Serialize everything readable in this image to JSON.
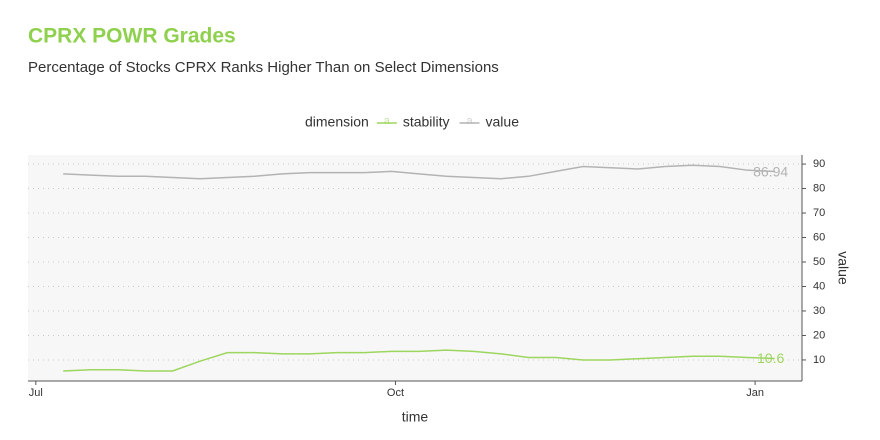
{
  "chart_data": {
    "type": "line",
    "title": "CPRX POWR Grades",
    "subtitle": "Percentage of Stocks CPRX Ranks Higher Than on Select Dimensions",
    "legend_title": "dimension",
    "legend_key_glyph": "a",
    "xlabel": "time",
    "ylabel": "value",
    "x": [
      7,
      14,
      21,
      28,
      35,
      42,
      49,
      56,
      63,
      70,
      77,
      84,
      91,
      98,
      105,
      112,
      119,
      126,
      133,
      140,
      147,
      154,
      161,
      168,
      175,
      182,
      189
    ],
    "series": [
      {
        "name": "stability",
        "color": "#9dd65f",
        "end_label": "10.6",
        "values": [
          5.5,
          6,
          6,
          5.5,
          5.5,
          9.5,
          13,
          13,
          12.5,
          12.5,
          13,
          13,
          13.5,
          13.5,
          14,
          13.5,
          12.5,
          11,
          11,
          10,
          10,
          10.5,
          11,
          11.5,
          11.5,
          11,
          10.6
        ]
      },
      {
        "name": "value",
        "color": "#b3b3b3",
        "end_label": "86.94",
        "values": [
          86,
          85.5,
          85,
          85,
          84.5,
          84,
          84.5,
          85,
          86,
          86.5,
          86.5,
          86.5,
          87,
          86,
          85,
          84.5,
          84,
          85,
          87,
          89,
          88.5,
          88,
          89,
          89.5,
          89,
          87.5,
          86.94
        ]
      }
    ],
    "xlim": [
      -2,
      196
    ],
    "xticks": [
      {
        "value": 0,
        "label": "Jul"
      },
      {
        "value": 92,
        "label": "Oct"
      },
      {
        "value": 184,
        "label": "Jan"
      }
    ],
    "ylim": [
      1.4,
      93.7
    ],
    "yticks": [
      10,
      20,
      30,
      40,
      50,
      60,
      70,
      80,
      90
    ],
    "grid": true,
    "legend_position": "top"
  }
}
